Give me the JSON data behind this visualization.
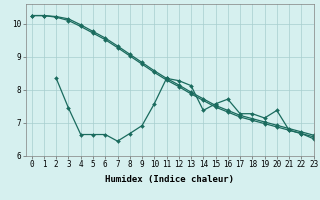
{
  "line1_x": [
    0,
    1,
    2,
    3,
    4,
    5,
    6,
    7,
    8,
    9,
    10,
    11,
    12,
    13,
    14,
    15,
    16,
    17,
    18,
    19,
    20,
    21,
    22,
    23
  ],
  "line1_y": [
    10.25,
    10.25,
    10.2,
    10.1,
    9.92,
    9.72,
    9.52,
    9.28,
    9.03,
    8.78,
    8.53,
    8.3,
    8.1,
    7.88,
    7.68,
    7.48,
    7.33,
    7.18,
    7.08,
    6.98,
    6.88,
    6.78,
    6.68,
    6.58
  ],
  "line2_x": [
    0,
    1,
    2,
    3,
    4,
    5,
    6,
    7,
    8,
    9,
    10,
    11,
    12,
    13,
    14,
    15,
    16,
    17,
    18,
    19,
    20,
    21,
    22,
    23
  ],
  "line2_y": [
    10.25,
    10.25,
    10.22,
    10.15,
    9.97,
    9.77,
    9.57,
    9.33,
    9.08,
    8.83,
    8.58,
    8.35,
    8.15,
    7.93,
    7.73,
    7.53,
    7.38,
    7.23,
    7.13,
    7.03,
    6.93,
    6.83,
    6.73,
    6.63
  ],
  "line3_x": [
    2,
    3,
    4,
    5,
    6,
    7,
    8,
    9,
    10,
    11,
    12,
    13,
    14,
    15,
    16,
    17,
    18,
    19,
    20,
    21,
    22,
    23
  ],
  "line3_y": [
    8.35,
    7.45,
    6.65,
    6.65,
    6.65,
    6.45,
    6.68,
    6.92,
    7.58,
    8.35,
    8.28,
    8.13,
    7.38,
    7.58,
    7.72,
    7.28,
    7.28,
    7.15,
    7.38,
    6.78,
    6.68,
    6.52
  ],
  "line_color": "#1a6b5e",
  "bg_color": "#d6f0ef",
  "grid_color": "#a8cece",
  "xlabel": "Humidex (Indice chaleur)",
  "ylim": [
    6,
    10.6
  ],
  "xlim": [
    -0.5,
    23
  ],
  "yticks": [
    6,
    7,
    8,
    9,
    10
  ],
  "xticks": [
    0,
    1,
    2,
    3,
    4,
    5,
    6,
    7,
    8,
    9,
    10,
    11,
    12,
    13,
    14,
    15,
    16,
    17,
    18,
    19,
    20,
    21,
    22,
    23
  ],
  "marker": "D",
  "markersize": 2.0,
  "linewidth": 0.9,
  "xlabel_fontsize": 6.5,
  "tick_fontsize": 5.5
}
